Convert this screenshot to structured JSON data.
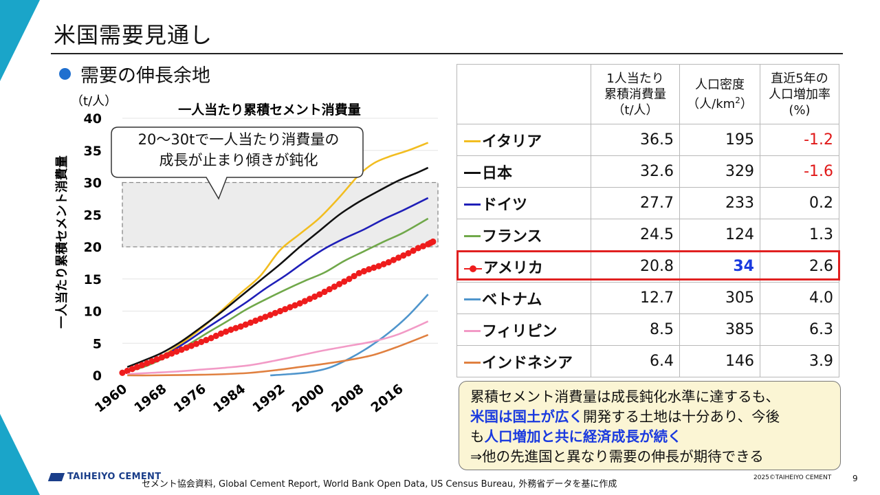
{
  "slide": {
    "title": "米国需要見通し",
    "subheading": "需要の伸長余地",
    "page_number": "9",
    "copyright": "2025©TAIHEIYO CEMENT",
    "source": "セメント協会資料, Global Cement Report, World Bank Open Data, US Census Bureau, 外務省データを基に作成",
    "logo_text": "TAIHEIYO CEMENT"
  },
  "callout": {
    "line1": "20～30tで一人当たり消費量の",
    "line2": "成長が止まり傾きが鈍化"
  },
  "chart_data": {
    "type": "line",
    "title": "一人当たり累積セメント消費量",
    "ylabel": "一人当たり累積セメント消費量",
    "yunit": "（t/人）",
    "ylim": [
      0,
      40
    ],
    "yticks": [
      0,
      5,
      10,
      15,
      20,
      25,
      30,
      35,
      40
    ],
    "xlim": [
      1960,
      2024
    ],
    "xticks": [
      1960,
      1968,
      1976,
      1984,
      1992,
      2000,
      2008,
      2016
    ],
    "band": [
      20,
      30
    ],
    "grid": true,
    "series": [
      {
        "name": "イタリア",
        "color": "#f2bd20",
        "x": [
          1961,
          1964,
          1968,
          1972,
          1976,
          1980,
          1984,
          1988,
          1992,
          1996,
          2000,
          2004,
          2008,
          2011,
          2014,
          2018,
          2022
        ],
        "y": [
          0.6,
          1.5,
          3.0,
          5.0,
          7.3,
          10.0,
          12.8,
          15.5,
          19.5,
          22.0,
          24.5,
          27.7,
          31.2,
          33.0,
          34.0,
          35.0,
          36.2
        ]
      },
      {
        "name": "日本",
        "color": "#111111",
        "x": [
          1961,
          1964,
          1968,
          1972,
          1976,
          1980,
          1984,
          1988,
          1992,
          1996,
          2000,
          2004,
          2008,
          2012,
          2016,
          2020,
          2022
        ],
        "y": [
          1.3,
          2.2,
          3.5,
          5.3,
          7.5,
          9.8,
          12.3,
          14.8,
          17.3,
          20.0,
          22.5,
          25.0,
          27.0,
          28.7,
          30.3,
          31.6,
          32.3
        ]
      },
      {
        "name": "ドイツ",
        "color": "#1f1fb8",
        "x": [
          1961,
          1965,
          1969,
          1973,
          1977,
          1981,
          1985,
          1989,
          1993,
          1997,
          2001,
          2005,
          2009,
          2013,
          2017,
          2022
        ],
        "y": [
          0.8,
          1.7,
          3.3,
          5.2,
          7.3,
          9.3,
          11.3,
          13.5,
          15.5,
          17.7,
          19.7,
          21.3,
          22.7,
          24.3,
          25.7,
          27.6
        ]
      },
      {
        "name": "フランス",
        "color": "#70a84a",
        "x": [
          1961,
          1965,
          1969,
          1973,
          1977,
          1981,
          1985,
          1989,
          1993,
          1997,
          2001,
          2005,
          2009,
          2013,
          2017,
          2022
        ],
        "y": [
          0.6,
          1.5,
          2.9,
          4.6,
          6.5,
          8.3,
          10.2,
          11.8,
          13.3,
          14.7,
          16.0,
          17.8,
          19.3,
          20.8,
          22.2,
          24.4
        ]
      },
      {
        "name": "アメリカ",
        "color": "#ee1c1c",
        "marker": true,
        "x": [
          1960,
          1962,
          1964,
          1966,
          1968,
          1970,
          1972,
          1974,
          1976,
          1978,
          1980,
          1982,
          1984,
          1986,
          1988,
          1990,
          1992,
          1994,
          1996,
          1998,
          2000,
          2002,
          2004,
          2006,
          2008,
          2010,
          2012,
          2014,
          2016,
          2018,
          2020,
          2022,
          2023
        ],
        "y": [
          0.4,
          1.0,
          1.6,
          2.2,
          2.8,
          3.4,
          4.0,
          4.6,
          5.2,
          5.8,
          6.5,
          7.1,
          7.6,
          8.2,
          8.8,
          9.4,
          10.0,
          10.6,
          11.2,
          11.9,
          12.6,
          13.4,
          14.2,
          15.0,
          15.9,
          16.5,
          17.0,
          17.6,
          18.3,
          19.0,
          19.8,
          20.4,
          20.8
        ]
      },
      {
        "name": "ベトナム",
        "color": "#4f95cc",
        "x": [
          1990,
          1994,
          1998,
          2002,
          2006,
          2010,
          2014,
          2018,
          2022
        ],
        "y": [
          0.0,
          0.2,
          0.5,
          1.2,
          2.6,
          4.4,
          6.6,
          9.3,
          12.6
        ]
      },
      {
        "name": "フィリピン",
        "color": "#f29ac6",
        "x": [
          1961,
          1966,
          1971,
          1976,
          1981,
          1986,
          1991,
          1996,
          2001,
          2006,
          2011,
          2016,
          2022
        ],
        "y": [
          0.2,
          0.4,
          0.6,
          0.9,
          1.2,
          1.6,
          2.3,
          3.1,
          3.9,
          4.6,
          5.3,
          6.4,
          8.4
        ]
      },
      {
        "name": "インドネシア",
        "color": "#e08040",
        "x": [
          1961,
          1966,
          1971,
          1976,
          1981,
          1986,
          1991,
          1996,
          2001,
          2006,
          2011,
          2016,
          2022
        ],
        "y": [
          0.0,
          0.0,
          0.05,
          0.1,
          0.2,
          0.4,
          0.8,
          1.3,
          1.8,
          2.4,
          3.2,
          4.5,
          6.3
        ]
      }
    ]
  },
  "table": {
    "headers": [
      "",
      "1人当たり\n累積消費量\n（t/人）",
      "人口密度\n（人/km2）",
      "直近5年の\n人口増加率\n(%)"
    ],
    "header2_main": "人口密度",
    "header2_sub_a": "（人/km",
    "header2_sup": "2",
    "header2_sub_b": "）",
    "rows": [
      {
        "country": "イタリア",
        "color": "#f2bd20",
        "consumption": "36.5",
        "density": "195",
        "growth": "-1.2"
      },
      {
        "country": "日本",
        "color": "#111111",
        "consumption": "32.6",
        "density": "329",
        "growth": "-1.6"
      },
      {
        "country": "ドイツ",
        "color": "#1f1fb8",
        "consumption": "27.7",
        "density": "233",
        "growth": "0.2"
      },
      {
        "country": "フランス",
        "color": "#70a84a",
        "consumption": "24.5",
        "density": "124",
        "growth": "1.3"
      },
      {
        "country": "アメリカ",
        "color": "#ee1c1c",
        "consumption": "20.8",
        "density": "34",
        "growth": "2.6"
      },
      {
        "country": "ベトナム",
        "color": "#4f95cc",
        "consumption": "12.7",
        "density": "305",
        "growth": "4.0"
      },
      {
        "country": "フィリピン",
        "color": "#f29ac6",
        "consumption": "8.5",
        "density": "385",
        "growth": "6.3"
      },
      {
        "country": "インドネシア",
        "color": "#e08040",
        "consumption": "6.4",
        "density": "146",
        "growth": "3.9"
      }
    ]
  },
  "note": {
    "l1": "累積セメント消費量は成長鈍化水準に達するも、",
    "l2_bold": "米国は国土が広く",
    "l2_rest": "開発する土地は十分あり、今後",
    "l3_pre": "も",
    "l3_bold": "人口増加と共に経済成長が続く",
    "l4": "⇒他の先進国と異なり需要の伸長が期待できる"
  }
}
